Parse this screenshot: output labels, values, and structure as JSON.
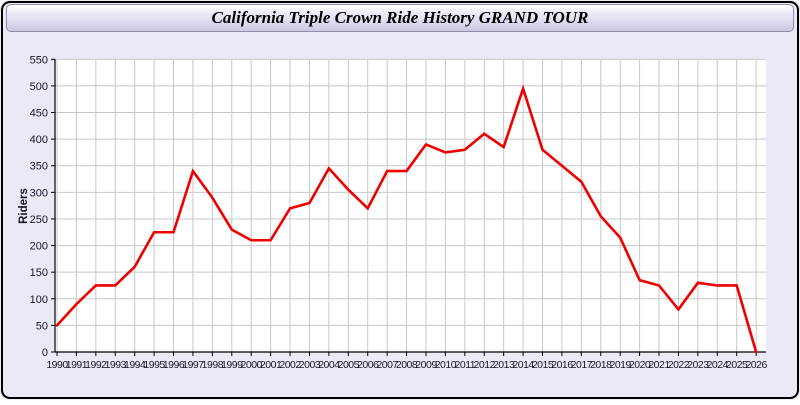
{
  "window_title": "California Triple Crown Ride History GRAND TOUR",
  "chart_data": {
    "type": "line",
    "title": "California Triple Crown Ride History GRAND TOUR",
    "xlabel": "",
    "ylabel": "Riders",
    "x": [
      1990,
      1991,
      1992,
      1993,
      1994,
      1995,
      1996,
      1997,
      1998,
      1999,
      2000,
      2001,
      2002,
      2003,
      2004,
      2005,
      2006,
      2007,
      2008,
      2009,
      2010,
      2011,
      2012,
      2013,
      2014,
      2015,
      2016,
      2017,
      2018,
      2019,
      2020,
      2021,
      2022,
      2023,
      2024,
      2025,
      2026
    ],
    "series": [
      {
        "name": "Riders",
        "color": "#ee0000",
        "values": [
          50,
          90,
          125,
          125,
          160,
          225,
          225,
          340,
          290,
          230,
          210,
          210,
          270,
          280,
          345,
          305,
          270,
          340,
          340,
          390,
          375,
          380,
          410,
          385,
          495,
          380,
          350,
          320,
          255,
          215,
          135,
          125,
          80,
          130,
          125,
          125,
          0
        ]
      }
    ],
    "ylim": [
      0,
      550
    ],
    "ytick_step": 50,
    "xtick_step": 1,
    "grid": true,
    "legend_position": "none"
  },
  "colors": {
    "line": "#ee0000",
    "plot_background": "#ffffff",
    "panel_background": "#eaeaf7",
    "grid": "#c8c8c8",
    "axis": "#000000",
    "text": "#15152a",
    "title_bar_border": "#8f8fa8"
  }
}
